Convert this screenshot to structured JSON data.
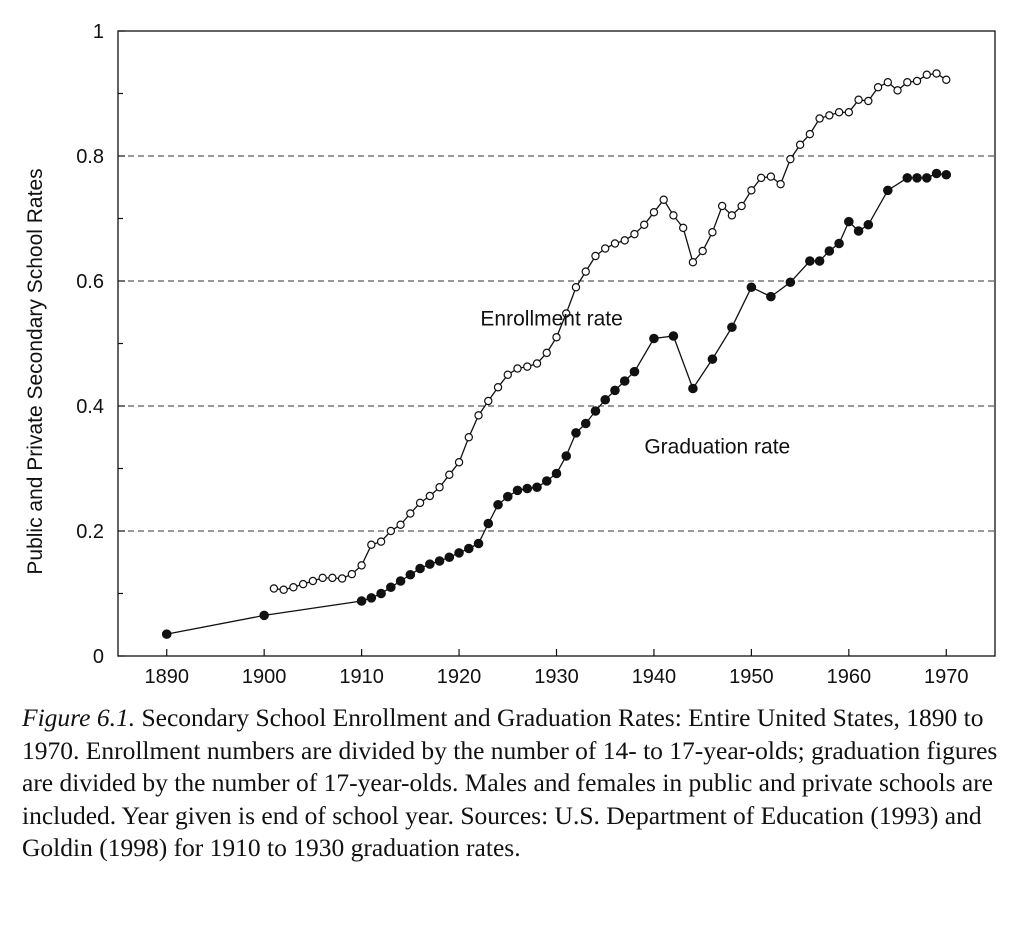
{
  "chart_data": {
    "type": "line",
    "title": "",
    "xlabel": "",
    "ylabel": "Public and Private Secondary School Rates",
    "xlim": [
      1885,
      1975
    ],
    "ylim": [
      0,
      1
    ],
    "xticks": [
      1890,
      1900,
      1910,
      1920,
      1930,
      1940,
      1950,
      1960,
      1970
    ],
    "xtick_labels": [
      "1890",
      "1900",
      "1910",
      "1920",
      "1930",
      "1940",
      "1950",
      "1960",
      "1970"
    ],
    "yticks": [
      0,
      0.2,
      0.4,
      0.6,
      0.8,
      1
    ],
    "ytick_labels": [
      "0",
      "0.2",
      "0.4",
      "0.6",
      "0.8",
      "1"
    ],
    "dashed_gridlines_y": [
      0.2,
      0.4,
      0.6,
      0.8
    ],
    "series": [
      {
        "name": "Enrollment rate",
        "marker": "open-circle",
        "label_position": [
          1929.5,
          0.54
        ],
        "x": [
          1901,
          1902,
          1903,
          1904,
          1905,
          1906,
          1907,
          1908,
          1909,
          1910,
          1911,
          1912,
          1913,
          1914,
          1915,
          1916,
          1917,
          1918,
          1919,
          1920,
          1921,
          1922,
          1923,
          1924,
          1925,
          1926,
          1927,
          1928,
          1929,
          1930,
          1931,
          1932,
          1933,
          1934,
          1935,
          1936,
          1937,
          1938,
          1939,
          1940,
          1941,
          1942,
          1943,
          1944,
          1945,
          1946,
          1947,
          1948,
          1949,
          1950,
          1951,
          1952,
          1953,
          1954,
          1955,
          1956,
          1957,
          1958,
          1959,
          1960,
          1961,
          1962,
          1963,
          1964,
          1965,
          1966,
          1967,
          1968,
          1969,
          1970
        ],
        "values": [
          0.108,
          0.106,
          0.11,
          0.115,
          0.12,
          0.125,
          0.125,
          0.124,
          0.131,
          0.145,
          0.178,
          0.183,
          0.2,
          0.21,
          0.228,
          0.245,
          0.256,
          0.27,
          0.29,
          0.31,
          0.35,
          0.385,
          0.408,
          0.43,
          0.45,
          0.46,
          0.463,
          0.468,
          0.485,
          0.51,
          0.548,
          0.59,
          0.615,
          0.64,
          0.652,
          0.66,
          0.665,
          0.675,
          0.69,
          0.71,
          0.73,
          0.705,
          0.685,
          0.63,
          0.648,
          0.678,
          0.72,
          0.705,
          0.72,
          0.745,
          0.765,
          0.767,
          0.755,
          0.795,
          0.818,
          0.835,
          0.86,
          0.865,
          0.87,
          0.87,
          0.89,
          0.888,
          0.91,
          0.918,
          0.905,
          0.918,
          0.92,
          0.93,
          0.932,
          0.922
        ]
      },
      {
        "name": "Graduation rate",
        "marker": "filled-circle",
        "label_position": [
          1946.5,
          0.335
        ],
        "x": [
          1890,
          1900,
          1910,
          1911,
          1912,
          1913,
          1914,
          1915,
          1916,
          1917,
          1918,
          1919,
          1920,
          1921,
          1922,
          1923,
          1924,
          1925,
          1926,
          1927,
          1928,
          1929,
          1930,
          1931,
          1932,
          1933,
          1934,
          1935,
          1936,
          1937,
          1938,
          1940,
          1942,
          1944,
          1946,
          1948,
          1950,
          1952,
          1954,
          1956,
          1957,
          1958,
          1959,
          1960,
          1961,
          1962,
          1964,
          1966,
          1967,
          1968,
          1969,
          1970
        ],
        "values": [
          0.035,
          0.065,
          0.088,
          0.093,
          0.1,
          0.11,
          0.12,
          0.13,
          0.14,
          0.147,
          0.152,
          0.158,
          0.165,
          0.172,
          0.18,
          0.212,
          0.242,
          0.255,
          0.265,
          0.268,
          0.27,
          0.28,
          0.292,
          0.32,
          0.357,
          0.372,
          0.392,
          0.41,
          0.425,
          0.44,
          0.455,
          0.508,
          0.512,
          0.428,
          0.475,
          0.526,
          0.59,
          0.575,
          0.598,
          0.632,
          0.632,
          0.648,
          0.66,
          0.695,
          0.68,
          0.69,
          0.745,
          0.765,
          0.765,
          0.765,
          0.772,
          0.77
        ]
      }
    ]
  },
  "caption": {
    "figure_label": "Figure 6.1.",
    "text": " Secondary School Enrollment and Graduation Rates: Entire United States, 1890 to 1970. Enrollment numbers are divided by the number of 14- to 17-year-olds; graduation figures are divided by the number of 17-year-olds. Males and females in public and private schools are included. Year given is end of school year. Sources: U.S. Department of Education (1993) and Goldin (1998) for 1910 to 1930 graduation rates."
  }
}
